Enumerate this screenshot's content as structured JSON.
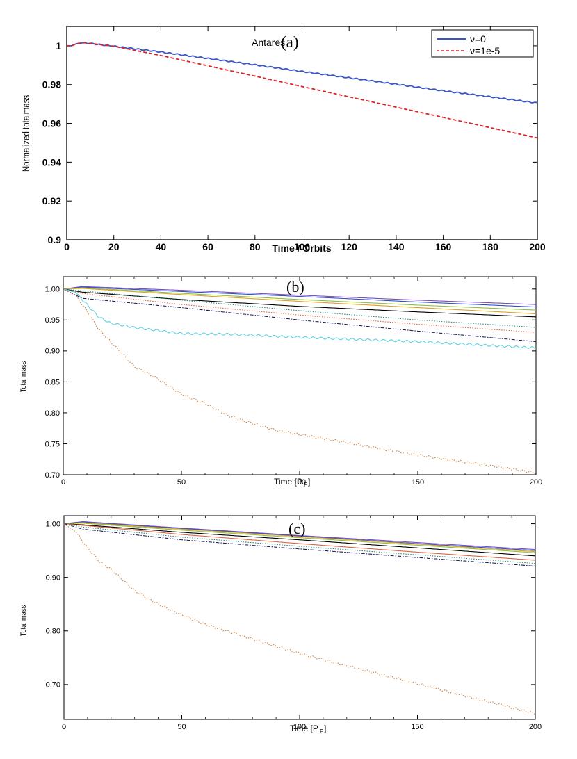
{
  "chart_data": [
    {
      "type": "line",
      "title": "Antares",
      "panel_label": "(a)",
      "xlabel": "Time / Orbits",
      "ylabel": "Normalized totalmass",
      "xlim": [
        0,
        200
      ],
      "ylim": [
        0.9,
        1.01
      ],
      "xticks": [
        "0",
        "20",
        "40",
        "60",
        "80",
        "100",
        "120",
        "140",
        "160",
        "180",
        "200"
      ],
      "yticks": [
        "0.9",
        "0.92",
        "0.94",
        "0.96",
        "0.98",
        "1"
      ],
      "legend": [
        "ν=0",
        "ν=1e-5"
      ],
      "legend_position": "top-right",
      "series": [
        {
          "name": "ν=0",
          "color": "#3a55c8",
          "style": "solid",
          "wiggle": true,
          "x": [
            0,
            2,
            4,
            6,
            8,
            10,
            20,
            40,
            60,
            80,
            100,
            120,
            140,
            160,
            180,
            200
          ],
          "y": [
            1.0,
            1.0,
            1.001,
            1.0015,
            1.0015,
            1.0012,
            0.9998,
            0.9968,
            0.9935,
            0.9902,
            0.9868,
            0.9835,
            0.9802,
            0.9768,
            0.9737,
            0.9705
          ]
        },
        {
          "name": "ν=1e-5",
          "color": "#e02020",
          "style": "dashed",
          "wiggle": false,
          "x": [
            0,
            2,
            4,
            6,
            8,
            10,
            20,
            40,
            60,
            80,
            100,
            120,
            140,
            160,
            180,
            200
          ],
          "y": [
            1.0,
            1.0,
            1.001,
            1.0015,
            1.0015,
            1.0012,
            0.9998,
            0.995,
            0.9897,
            0.9844,
            0.979,
            0.9737,
            0.9684,
            0.9631,
            0.9578,
            0.9525
          ]
        }
      ]
    },
    {
      "type": "line",
      "panel_label": "(b)",
      "xlabel": "Time [P",
      "xlabel_sub": "P",
      "xlabel_close": "]",
      "ylabel": "Total mass",
      "xlim": [
        0,
        200
      ],
      "ylim": [
        0.7,
        1.02
      ],
      "xticks": [
        "0",
        "50",
        "100",
        "150",
        "200"
      ],
      "yticks": [
        "0.70",
        "0.75",
        "0.80",
        "0.85",
        "0.90",
        "0.95",
        "1.00"
      ],
      "series": [
        {
          "color": "#7a50c0",
          "style": "solid",
          "x": [
            0,
            8,
            50,
            100,
            150,
            200
          ],
          "y": [
            1.0,
            1.004,
            0.998,
            0.99,
            0.982,
            0.975
          ]
        },
        {
          "color": "#3050d0",
          "style": "solid",
          "x": [
            0,
            8,
            50,
            100,
            150,
            200
          ],
          "y": [
            1.0,
            1.003,
            0.996,
            0.988,
            0.979,
            0.971
          ]
        },
        {
          "color": "#90c040",
          "style": "solid",
          "x": [
            0,
            8,
            50,
            100,
            150,
            200
          ],
          "y": [
            1.0,
            1.002,
            0.993,
            0.983,
            0.974,
            0.966
          ]
        },
        {
          "color": "#e0a020",
          "style": "solid",
          "x": [
            0,
            8,
            50,
            100,
            150,
            200
          ],
          "y": [
            1.0,
            1.001,
            0.991,
            0.98,
            0.97,
            0.96
          ]
        },
        {
          "color": "#000000",
          "style": "solid",
          "x": [
            0,
            8,
            50,
            100,
            150,
            200
          ],
          "y": [
            1.0,
            0.995,
            0.983,
            0.972,
            0.963,
            0.955
          ]
        },
        {
          "color": "#2a8a7a",
          "style": "dotted",
          "x": [
            0,
            8,
            50,
            100,
            150,
            200
          ],
          "y": [
            1.0,
            0.997,
            0.982,
            0.965,
            0.95,
            0.938
          ]
        },
        {
          "color": "#e06040",
          "style": "dotted",
          "x": [
            0,
            8,
            50,
            100,
            150,
            200
          ],
          "y": [
            1.0,
            0.993,
            0.975,
            0.958,
            0.943,
            0.93
          ]
        },
        {
          "color": "#202060",
          "style": "dashdot",
          "x": [
            0,
            8,
            50,
            100,
            150,
            200
          ],
          "y": [
            1.0,
            0.985,
            0.97,
            0.95,
            0.932,
            0.915
          ]
        },
        {
          "color": "#60d0e0",
          "style": "solid",
          "wiggle": true,
          "x": [
            0,
            5,
            10,
            15,
            20,
            30,
            50,
            70,
            100,
            150,
            200
          ],
          "y": [
            1.0,
            0.995,
            0.975,
            0.955,
            0.945,
            0.938,
            0.928,
            0.927,
            0.922,
            0.915,
            0.905
          ]
        },
        {
          "color": "#d08040",
          "style": "dotted",
          "wiggle": true,
          "x": [
            0,
            5,
            10,
            15,
            20,
            30,
            40,
            50,
            60,
            70,
            80,
            90,
            100,
            120,
            140,
            160,
            180,
            200
          ],
          "y": [
            1.0,
            0.99,
            0.965,
            0.935,
            0.915,
            0.875,
            0.855,
            0.83,
            0.815,
            0.795,
            0.783,
            0.772,
            0.765,
            0.752,
            0.738,
            0.726,
            0.715,
            0.703
          ]
        }
      ]
    },
    {
      "type": "line",
      "panel_label": "(c)",
      "xlabel": "Time [P",
      "xlabel_sub": "P",
      "xlabel_close": "]",
      "ylabel": "Total mass",
      "xlim": [
        0,
        200
      ],
      "ylim": [
        0.635,
        1.015
      ],
      "xticks": [
        "0",
        "50",
        "100",
        "150",
        "200"
      ],
      "yticks": [
        "0.70",
        "0.80",
        "0.90",
        "1.00"
      ],
      "series": [
        {
          "color": "#7a50c0",
          "style": "solid",
          "x": [
            0,
            8,
            50,
            100,
            150,
            200
          ],
          "y": [
            1.0,
            1.004,
            0.992,
            0.978,
            0.965,
            0.952
          ]
        },
        {
          "color": "#3050d0",
          "style": "solid",
          "x": [
            0,
            8,
            50,
            100,
            150,
            200
          ],
          "y": [
            1.0,
            1.003,
            0.991,
            0.977,
            0.963,
            0.95
          ]
        },
        {
          "color": "#e0a020",
          "style": "solid",
          "x": [
            0,
            8,
            50,
            100,
            150,
            200
          ],
          "y": [
            1.0,
            1.002,
            0.99,
            0.976,
            0.962,
            0.948
          ]
        },
        {
          "color": "#90c040",
          "style": "solid",
          "x": [
            0,
            8,
            50,
            100,
            150,
            200
          ],
          "y": [
            1.0,
            1.001,
            0.988,
            0.974,
            0.96,
            0.946
          ]
        },
        {
          "color": "#000000",
          "style": "solid",
          "x": [
            0,
            8,
            50,
            100,
            150,
            200
          ],
          "y": [
            1.0,
            0.998,
            0.984,
            0.97,
            0.955,
            0.94
          ]
        },
        {
          "color": "#e06040",
          "style": "solid",
          "x": [
            0,
            8,
            50,
            100,
            150,
            200
          ],
          "y": [
            1.0,
            0.997,
            0.98,
            0.963,
            0.947,
            0.932
          ]
        },
        {
          "color": "#2a8a7a",
          "style": "dotted",
          "x": [
            0,
            8,
            50,
            100,
            150,
            200
          ],
          "y": [
            1.0,
            0.994,
            0.975,
            0.958,
            0.942,
            0.926
          ]
        },
        {
          "color": "#202060",
          "style": "dashdot",
          "x": [
            0,
            8,
            50,
            100,
            150,
            200
          ],
          "y": [
            1.0,
            0.99,
            0.97,
            0.953,
            0.937,
            0.921
          ]
        },
        {
          "color": "#d08040",
          "style": "dotted",
          "wiggle": true,
          "x": [
            0,
            5,
            10,
            15,
            20,
            30,
            40,
            50,
            60,
            80,
            100,
            120,
            140,
            160,
            180,
            200
          ],
          "y": [
            1.0,
            0.985,
            0.955,
            0.93,
            0.915,
            0.875,
            0.85,
            0.83,
            0.812,
            0.785,
            0.758,
            0.735,
            0.713,
            0.69,
            0.668,
            0.646
          ]
        }
      ]
    }
  ]
}
